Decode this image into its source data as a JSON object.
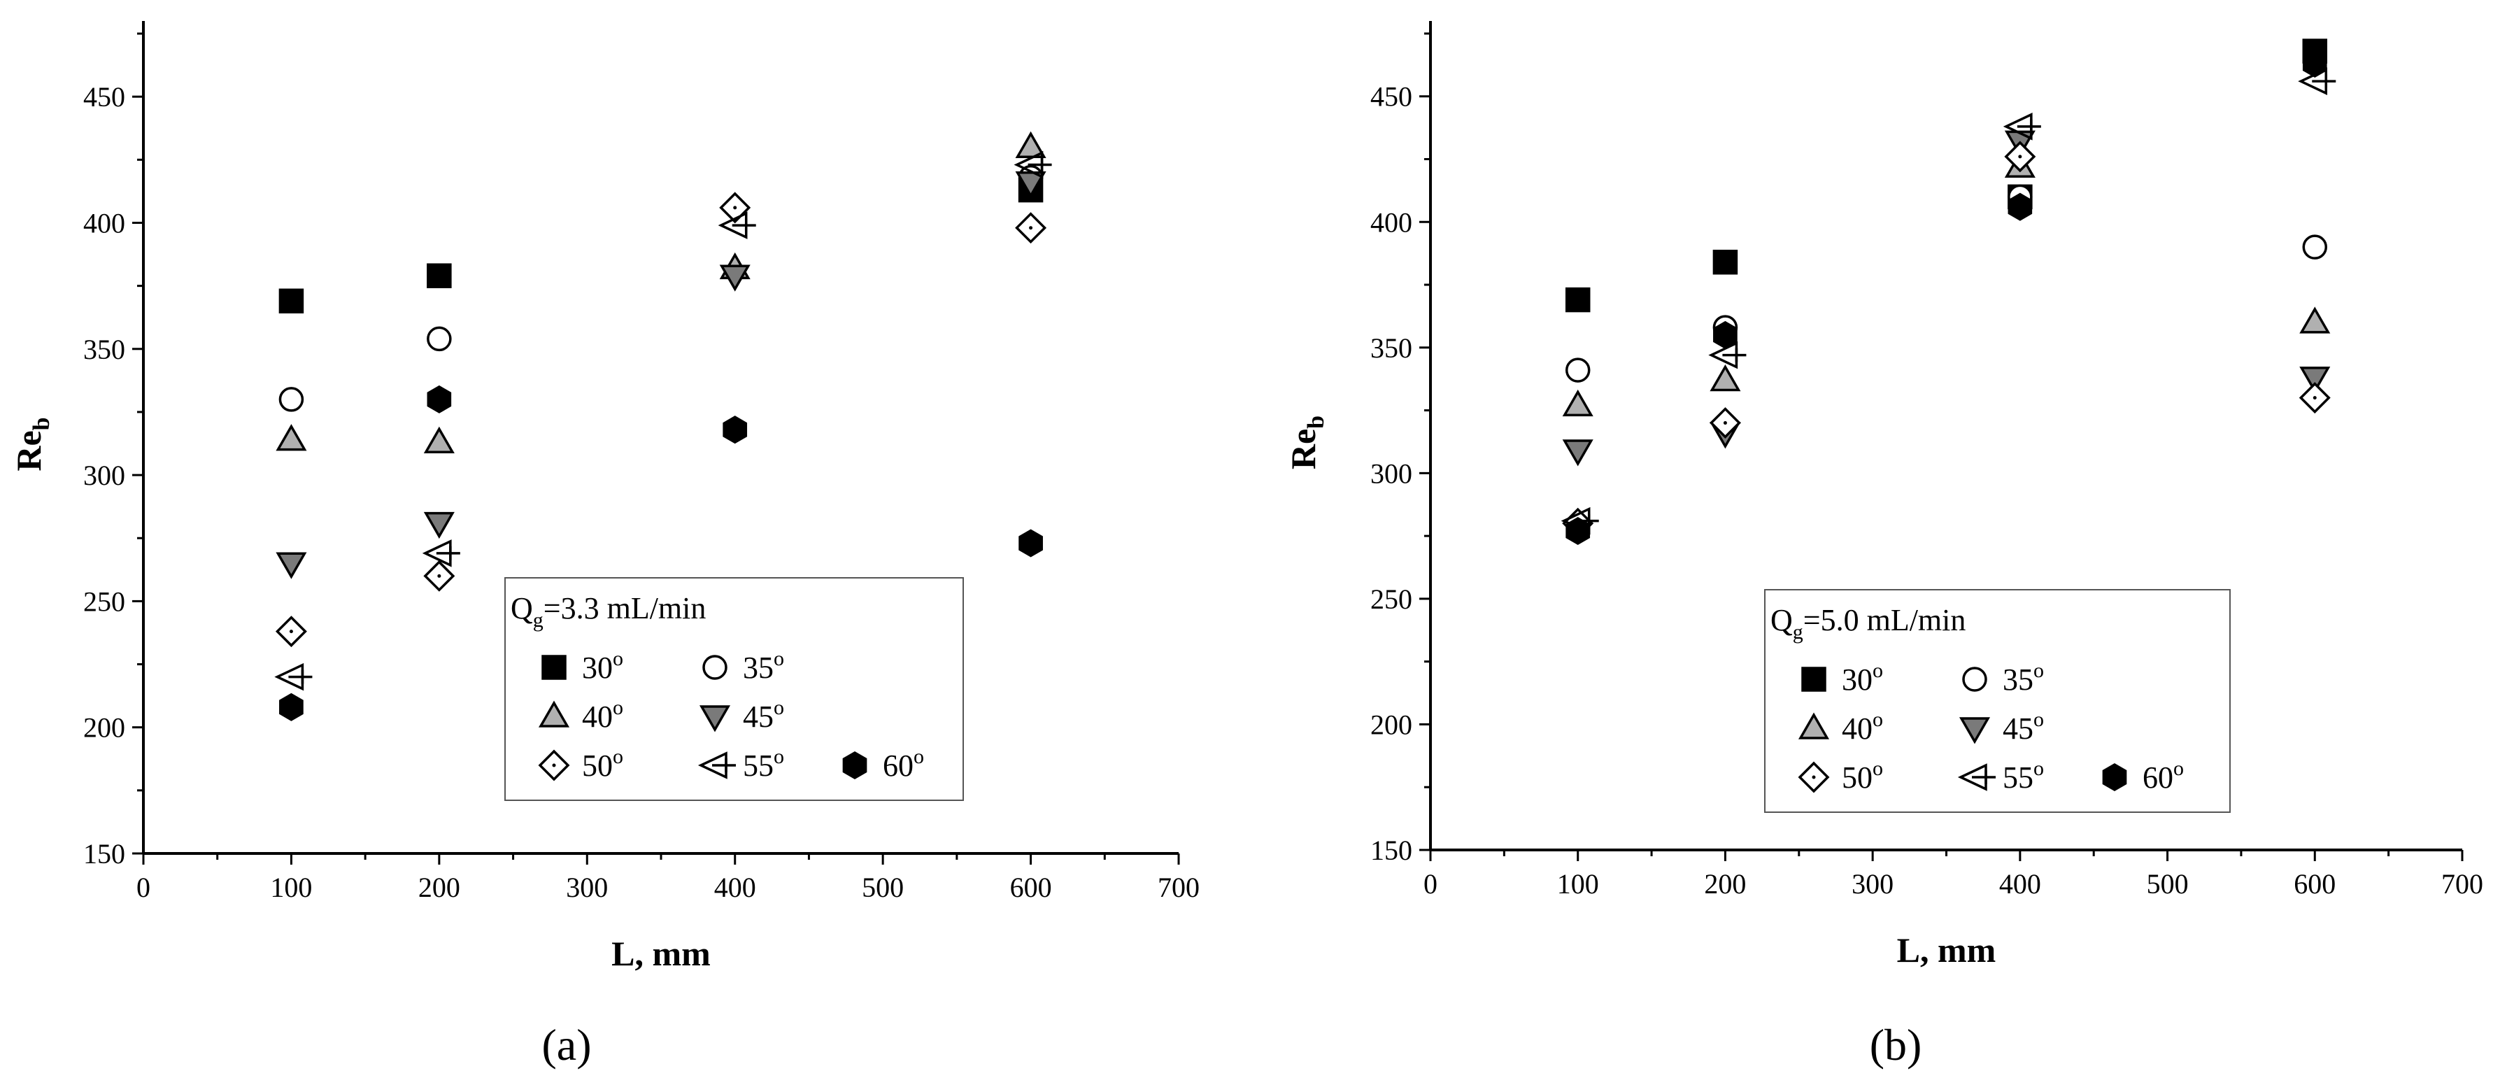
{
  "chart_data": [
    {
      "type": "scatter",
      "panel_label": "(a)",
      "xlabel": "L, mm",
      "ylabel": "Re",
      "ylabel_sub": "b",
      "xlim": [
        0,
        700
      ],
      "ylim": [
        150,
        480
      ],
      "xticks": [
        0,
        100,
        200,
        300,
        400,
        500,
        600,
        700
      ],
      "yticks": [
        150,
        200,
        250,
        300,
        350,
        400,
        450
      ],
      "grid": false,
      "legend_placement": "center-right",
      "legend_title": {
        "base": "Q",
        "sub": "g",
        "rest": "=3.3 mL/min"
      },
      "series": [
        {
          "name": "30",
          "marker": "square",
          "points": [
            [
              100,
              369
            ],
            [
              200,
              379
            ],
            [
              600,
              413
            ]
          ]
        },
        {
          "name": "35",
          "marker": "circle",
          "points": [
            [
              100,
              330
            ],
            [
              200,
              354
            ],
            [
              600,
              418
            ]
          ]
        },
        {
          "name": "40",
          "marker": "triangle-up",
          "points": [
            [
              100,
              314
            ],
            [
              200,
              313
            ],
            [
              400,
              382
            ],
            [
              600,
              430
            ]
          ]
        },
        {
          "name": "45",
          "marker": "triangle-down",
          "points": [
            [
              100,
              265
            ],
            [
              200,
              281
            ],
            [
              400,
              379
            ],
            [
              600,
              416
            ]
          ]
        },
        {
          "name": "50",
          "marker": "diamond",
          "points": [
            [
              100,
              238
            ],
            [
              200,
              260
            ],
            [
              400,
              406
            ],
            [
              600,
              398
            ]
          ]
        },
        {
          "name": "55",
          "marker": "triangle-left",
          "points": [
            [
              100,
              220
            ],
            [
              200,
              269
            ],
            [
              400,
              399
            ],
            [
              600,
              423
            ]
          ]
        },
        {
          "name": "60",
          "marker": "hexagon",
          "points": [
            [
              100,
              208
            ],
            [
              200,
              330
            ],
            [
              400,
              318
            ],
            [
              600,
              273
            ]
          ]
        }
      ]
    },
    {
      "type": "scatter",
      "panel_label": "(b)",
      "xlabel": "L, mm",
      "ylabel": "Re",
      "ylabel_sub": "b",
      "xlim": [
        0,
        700
      ],
      "ylim": [
        150,
        480
      ],
      "xticks": [
        0,
        100,
        200,
        300,
        400,
        500,
        600,
        700
      ],
      "yticks": [
        150,
        200,
        250,
        300,
        350,
        400,
        450
      ],
      "grid": false,
      "legend_placement": "lower-left",
      "legend_title": {
        "base": "Q",
        "sub": "g",
        "rest": "=5.0 mL/min"
      },
      "series": [
        {
          "name": "30",
          "marker": "square",
          "points": [
            [
              100,
              369
            ],
            [
              200,
              384
            ],
            [
              400,
              410
            ],
            [
              600,
              468
            ]
          ]
        },
        {
          "name": "35",
          "marker": "circle",
          "points": [
            [
              100,
              341
            ],
            [
              200,
              358
            ],
            [
              400,
              410
            ],
            [
              600,
              390
            ]
          ]
        },
        {
          "name": "40",
          "marker": "triangle-up",
          "points": [
            [
              100,
              327
            ],
            [
              200,
              337
            ],
            [
              400,
              422
            ],
            [
              600,
              360
            ]
          ]
        },
        {
          "name": "45",
          "marker": "triangle-down",
          "points": [
            [
              100,
              309
            ],
            [
              200,
              316
            ],
            [
              400,
              432
            ],
            [
              600,
              338
            ]
          ]
        },
        {
          "name": "50",
          "marker": "diamond",
          "points": [
            [
              100,
              280
            ],
            [
              200,
              320
            ],
            [
              400,
              426
            ],
            [
              600,
              330
            ]
          ]
        },
        {
          "name": "55",
          "marker": "triangle-left",
          "points": [
            [
              100,
              281
            ],
            [
              200,
              347
            ],
            [
              400,
              438
            ],
            [
              600,
              456
            ]
          ]
        },
        {
          "name": "60",
          "marker": "hexagon",
          "points": [
            [
              100,
              277
            ],
            [
              200,
              355
            ],
            [
              400,
              406
            ],
            [
              600,
              463
            ]
          ]
        }
      ]
    }
  ]
}
